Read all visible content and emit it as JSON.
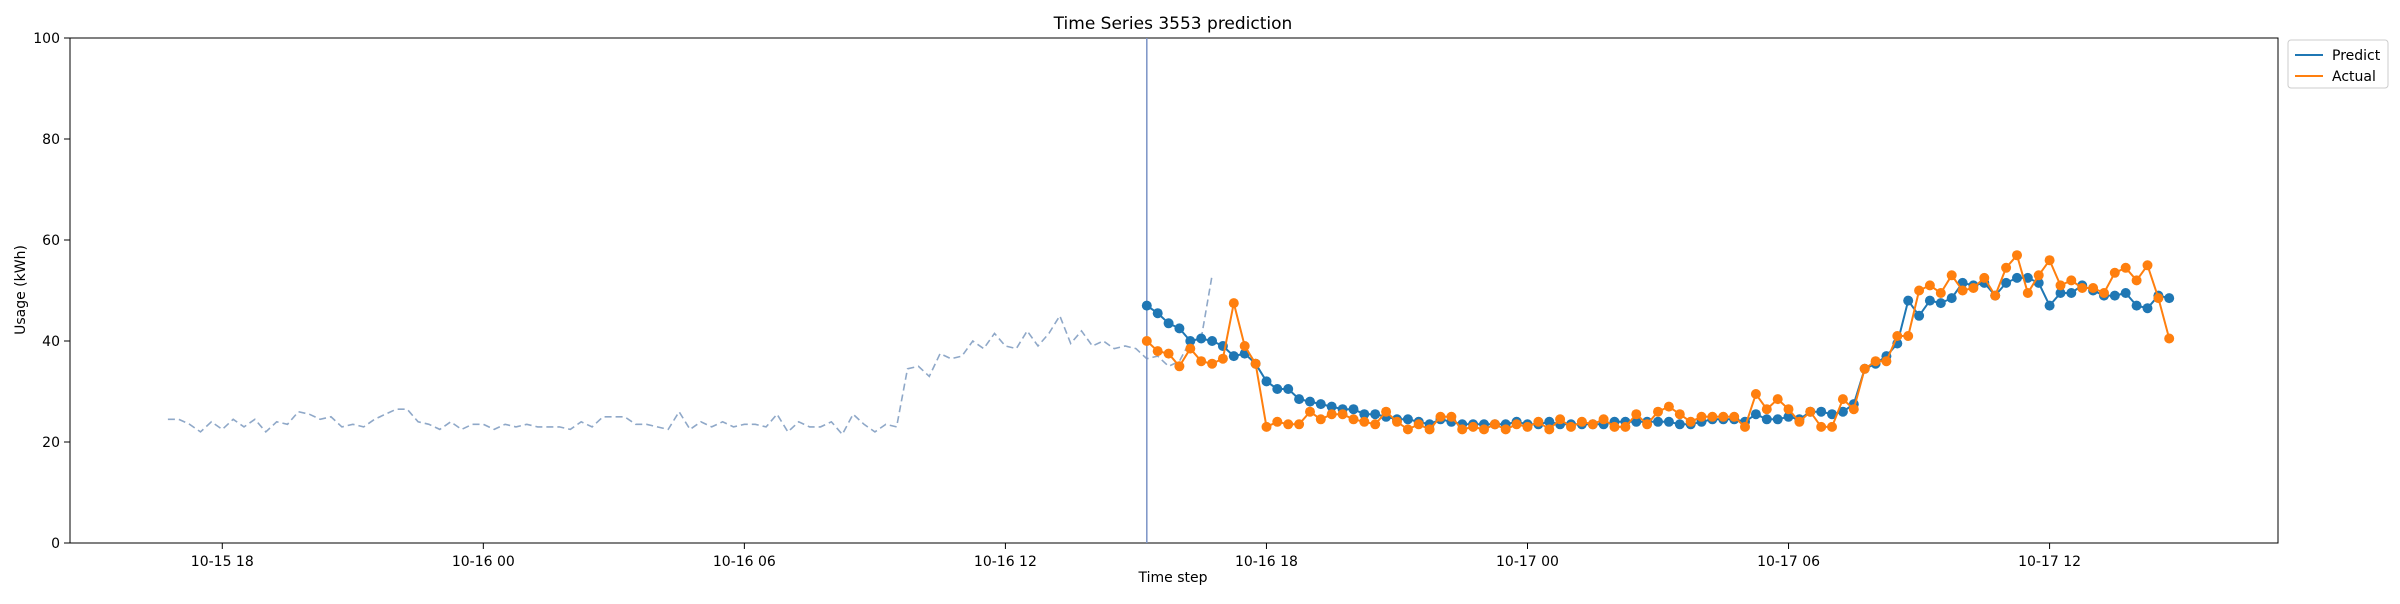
{
  "chart_data": {
    "type": "line",
    "title": "Time Series 3553 prediction",
    "xlabel": "Time step",
    "ylabel": "Usage (kWh)",
    "ylim": [
      0,
      100
    ],
    "xlim": [
      "2023-10-15 14:30",
      "2023-10-17 17:15"
    ],
    "yticks": [
      0,
      20,
      40,
      60,
      80,
      100
    ],
    "xticks": [
      {
        "t": "2023-10-15 18:00",
        "label": "10-15 18"
      },
      {
        "t": "2023-10-16 00:00",
        "label": "10-16 00"
      },
      {
        "t": "2023-10-16 06:00",
        "label": "10-16 06"
      },
      {
        "t": "2023-10-16 12:00",
        "label": "10-16 12"
      },
      {
        "t": "2023-10-16 18:00",
        "label": "10-16 18"
      },
      {
        "t": "2023-10-17 00:00",
        "label": "10-17 00"
      },
      {
        "t": "2023-10-17 06:00",
        "label": "10-17 06"
      },
      {
        "t": "2023-10-17 12:00",
        "label": "10-17 12"
      }
    ],
    "grid": false,
    "legend_position": "upper-right-outside",
    "forecast_start": "2023-10-16 15:15",
    "history": {
      "start": "2023-10-15 16:45",
      "step_minutes": 15,
      "style": "dashed",
      "color": "#8fa8c8",
      "values": [
        24.5,
        24.5,
        23.5,
        22,
        24,
        22.5,
        24.5,
        23,
        24.5,
        22,
        24,
        23.5,
        26,
        25.5,
        24.5,
        25,
        23,
        23.5,
        23,
        24.5,
        25.5,
        26.5,
        26.5,
        24,
        23.5,
        22.5,
        24,
        22.5,
        23.5,
        23.5,
        22.5,
        23.5,
        23,
        23.5,
        23,
        23,
        23,
        22.5,
        24,
        23,
        25,
        25,
        25,
        23.5,
        23.5,
        23,
        22.5,
        26,
        22.5,
        24,
        23,
        24,
        23,
        23.5,
        23.5,
        23,
        25.5,
        22,
        24,
        23,
        23,
        24,
        21.5,
        25.5,
        23.5,
        22,
        23.5,
        23,
        34.5,
        35,
        33,
        37.5,
        36.5,
        37,
        40,
        38.5,
        41.5,
        39,
        38.5,
        42,
        39,
        41.5,
        45,
        39.5,
        42,
        39,
        40,
        38.5,
        39,
        38.5,
        36.5,
        37,
        35,
        36,
        40,
        40.5,
        53
      ]
    },
    "forecast_times": {
      "start": "2023-10-16 15:15",
      "step_minutes": 15
    },
    "series": [
      {
        "name": "Predict",
        "color": "#1f77b4",
        "values": [
          47,
          45.5,
          43.5,
          42.5,
          40,
          40.5,
          40,
          39,
          37,
          37.5,
          35.5,
          32,
          30.5,
          30.5,
          28.5,
          28,
          27.5,
          27,
          26.5,
          26.5,
          25.5,
          25.5,
          25,
          24.5,
          24.5,
          24,
          23.5,
          24.5,
          24,
          23.5,
          23.5,
          23.5,
          23.5,
          23.5,
          24,
          23.5,
          23.5,
          24,
          23.5,
          23.5,
          23.5,
          23.5,
          23.5,
          24,
          24,
          24,
          24,
          24,
          24,
          23.5,
          23.5,
          24,
          24.5,
          24.5,
          24.5,
          24,
          25.5,
          24.5,
          24.5,
          25,
          24.5,
          26,
          26,
          25.5,
          26,
          27.5,
          34.5,
          35.5,
          37,
          39.5,
          48,
          45,
          48,
          47.5,
          48.5,
          51.5,
          51,
          51.5,
          49,
          51.5,
          52.5,
          52.5,
          51.5,
          47,
          49.5,
          49.5,
          51,
          50,
          49,
          49,
          49.5,
          47,
          46.5,
          49,
          48.5
        ]
      },
      {
        "name": "Actual",
        "color": "#ff7f0e",
        "values": [
          40,
          38,
          37.5,
          35,
          38.5,
          36,
          35.5,
          36.5,
          47.5,
          39,
          35.5,
          23,
          24,
          23.5,
          23.5,
          26,
          24.5,
          25.5,
          25.5,
          24.5,
          24,
          23.5,
          26,
          24,
          22.5,
          23.5,
          22.5,
          25,
          25,
          22.5,
          23,
          22.5,
          23.5,
          22.5,
          23.5,
          23,
          24,
          22.5,
          24.5,
          23,
          24,
          23.5,
          24.5,
          23,
          23,
          25.5,
          23.5,
          26,
          27,
          25.5,
          24,
          25,
          25,
          25,
          25,
          23,
          29.5,
          26.5,
          28.5,
          26.5,
          24,
          26,
          23,
          23,
          28.5,
          26.5,
          34.5,
          36,
          36,
          41,
          41,
          50,
          51,
          49.5,
          53,
          50,
          50.5,
          52.5,
          49,
          54.5,
          57,
          49.5,
          53,
          56,
          51,
          52,
          50.5,
          50.5,
          49.5,
          53.5,
          54.5,
          52,
          55,
          48.5,
          40.5
        ]
      }
    ]
  }
}
